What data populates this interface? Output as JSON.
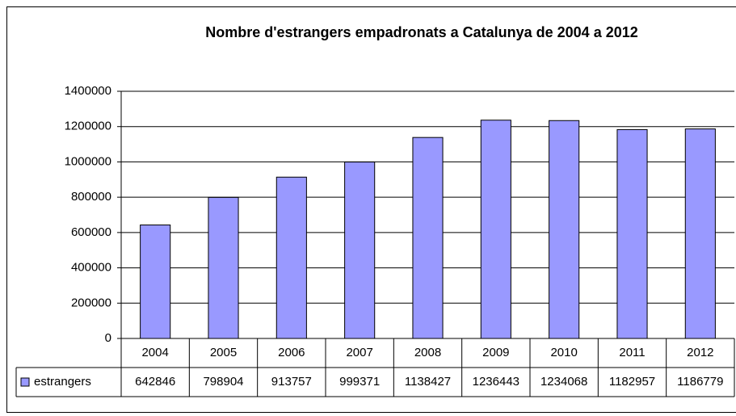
{
  "chart_data": {
    "type": "bar",
    "title": "Nombre d'estrangers empadronats a Catalunya de 2004 a 2012",
    "categories": [
      "2004",
      "2005",
      "2006",
      "2007",
      "2008",
      "2009",
      "2010",
      "2011",
      "2012"
    ],
    "series": [
      {
        "name": "estrangers",
        "color": "#9999ff",
        "values": [
          642846,
          798904,
          913757,
          999371,
          1138427,
          1236443,
          1234068,
          1182957,
          1186779
        ]
      }
    ],
    "ylim": [
      0,
      1400000
    ],
    "yticks": [
      0,
      200000,
      400000,
      600000,
      800000,
      1000000,
      1200000,
      1400000
    ],
    "grid": true,
    "data_table": true
  }
}
